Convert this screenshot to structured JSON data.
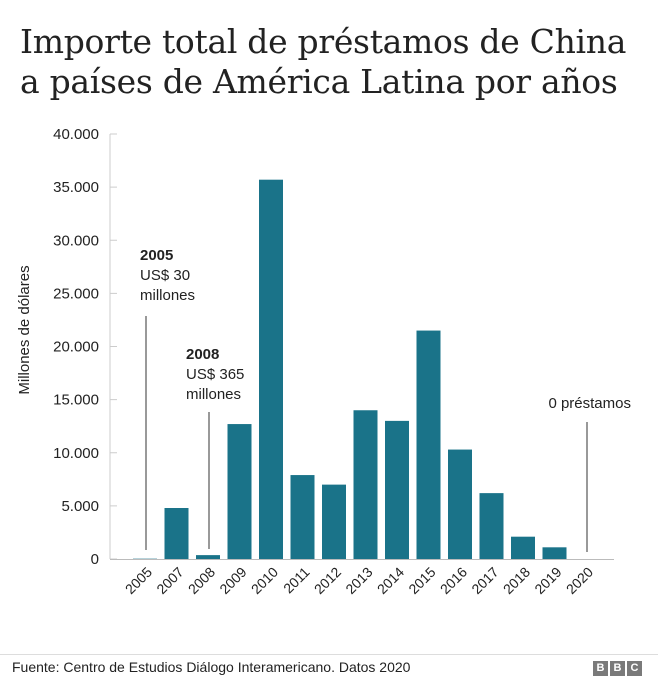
{
  "title": "Importe total de préstamos de China a países de América Latina por años",
  "source": "Fuente: Centro de Estudios Diálogo Interamericano. Datos 2020",
  "logo": [
    "B",
    "B",
    "C"
  ],
  "chart_data": {
    "type": "bar",
    "ylabel": "Millones de dólares",
    "ylim": [
      0,
      40000
    ],
    "yticks": [
      "0",
      "5.000",
      "10.000",
      "15.000",
      "20.000",
      "25.000",
      "30.000",
      "35.000",
      "40.000"
    ],
    "ytick_values": [
      0,
      5000,
      10000,
      15000,
      20000,
      25000,
      30000,
      35000,
      40000
    ],
    "categories": [
      "2005",
      "2007",
      "2008",
      "2009",
      "2010",
      "2011",
      "2012",
      "2013",
      "2014",
      "2015",
      "2016",
      "2017",
      "2018",
      "2019",
      "2020"
    ],
    "values": [
      30,
      4800,
      365,
      12700,
      35700,
      7900,
      7000,
      14000,
      13000,
      21500,
      10300,
      6200,
      2100,
      1100,
      0
    ],
    "bar_color": "#1a7389",
    "grid": false,
    "annotations": [
      {
        "category": "2005",
        "lines": [
          "2005",
          "US$ 30",
          "millones"
        ],
        "bold_first": true
      },
      {
        "category": "2008",
        "lines": [
          "2008",
          "US$ 365",
          "millones"
        ],
        "bold_first": true
      },
      {
        "category": "2020",
        "lines": [
          "0 préstamos"
        ],
        "bold_first": false
      }
    ]
  }
}
